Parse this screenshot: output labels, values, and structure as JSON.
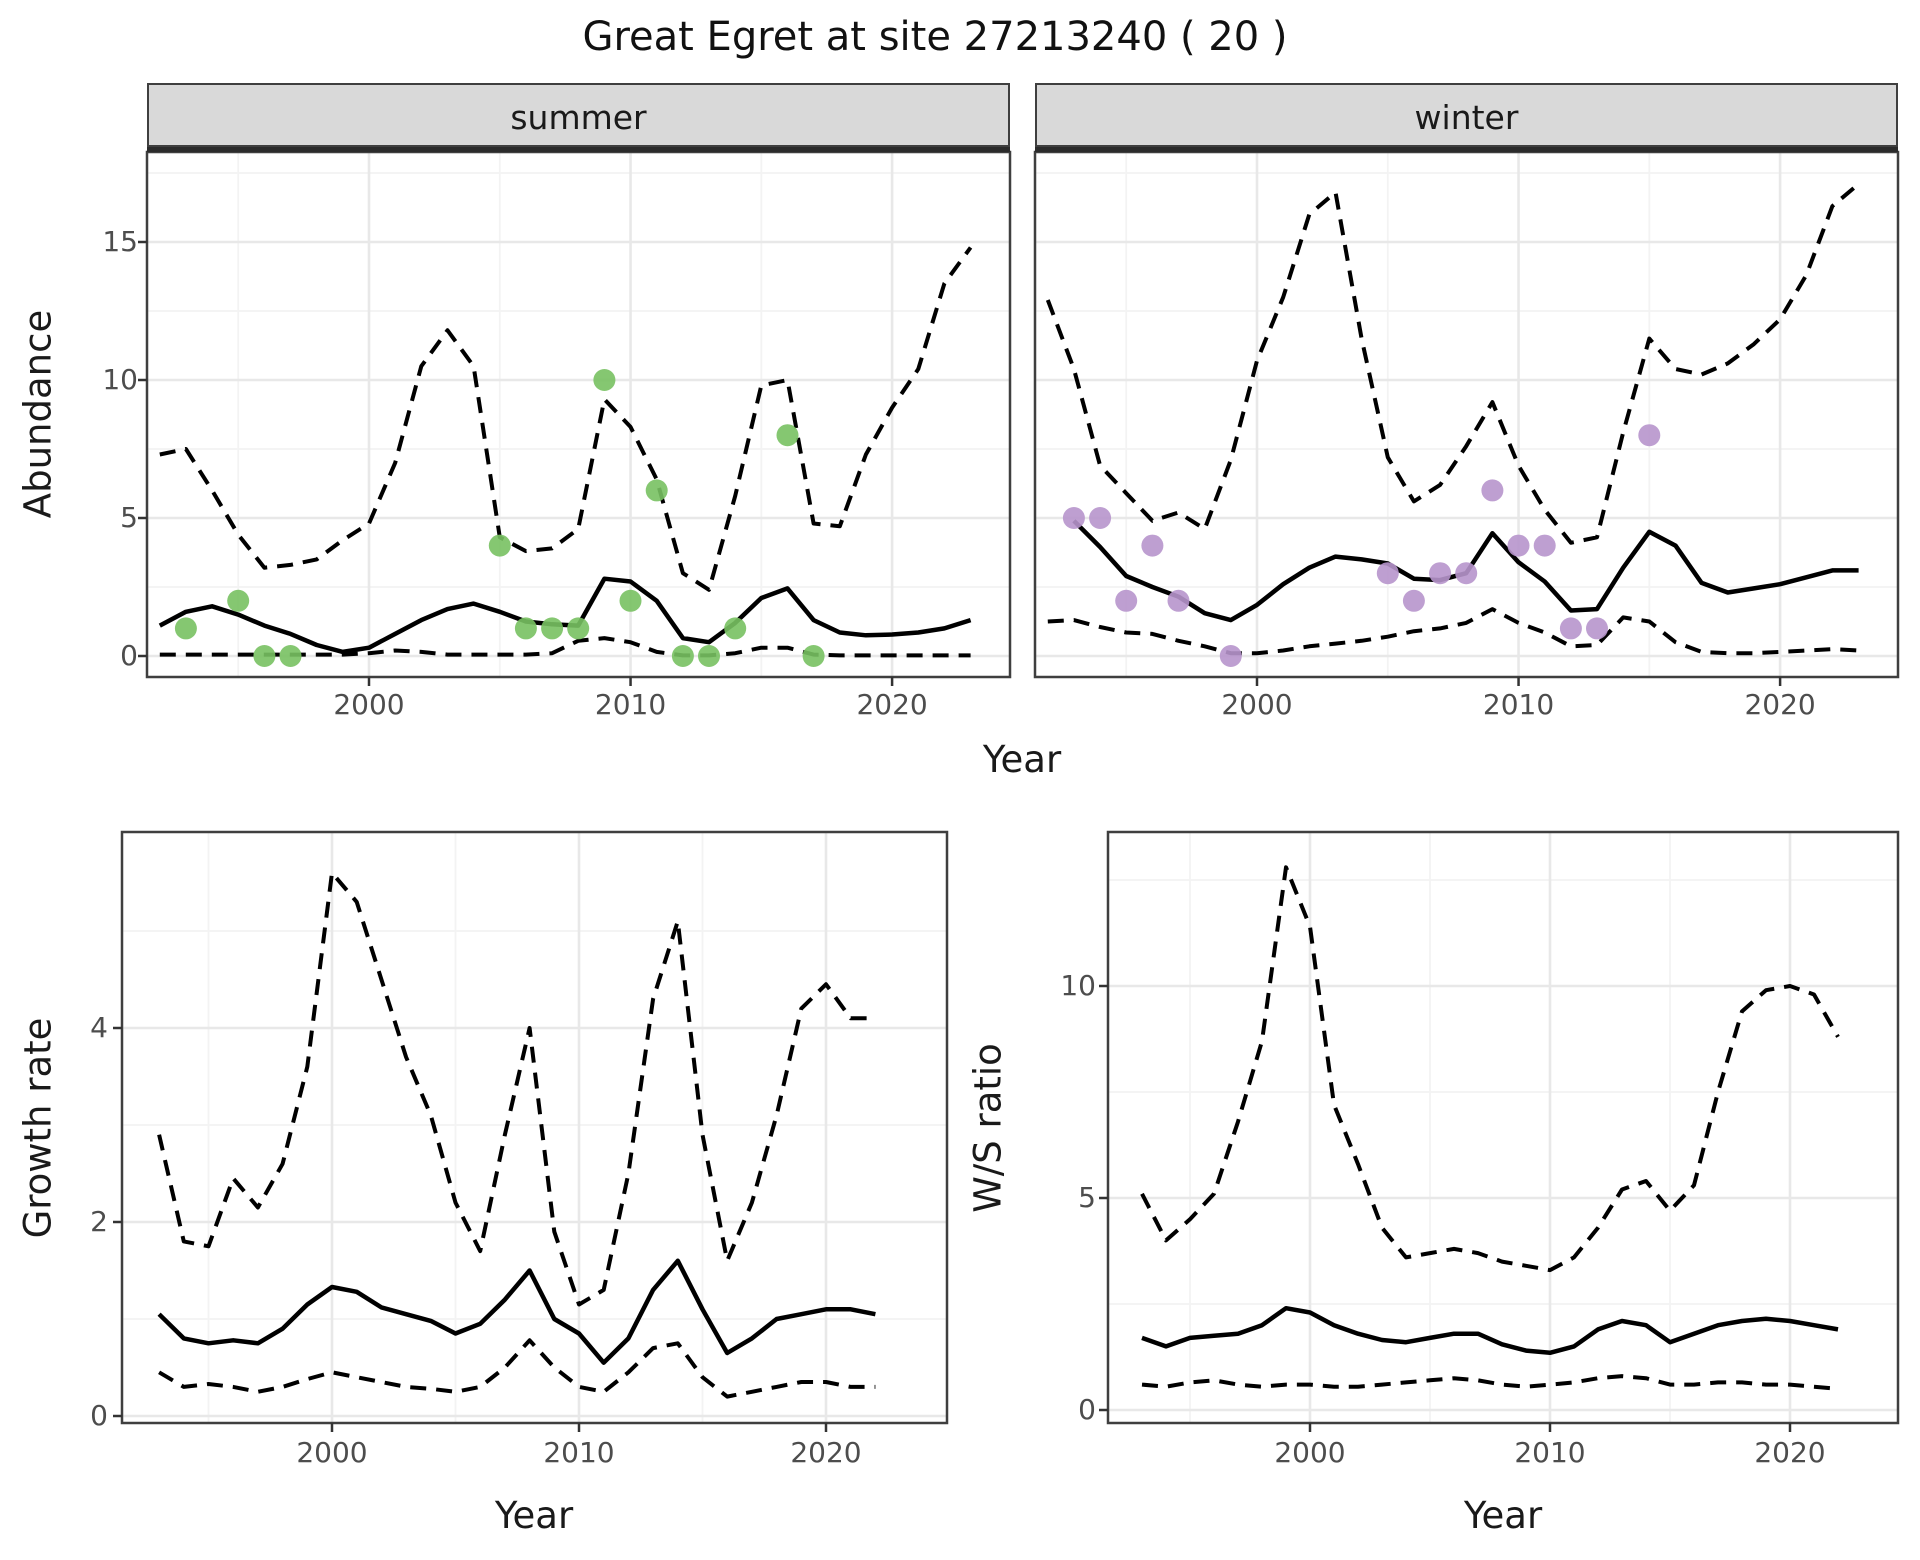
{
  "title": "Great Egret at site 27213240 ( 20 )",
  "colors": {
    "summer_point": "#78c162",
    "winter_point": "#b795cc",
    "line": "#000000",
    "strip_bg": "#d9d9d9",
    "grid_major": "#e8e8e8",
    "grid_minor": "#f3f3f3",
    "panel_border": "#3f3f3f",
    "tick_text": "#4d4d4d"
  },
  "top": {
    "ylabel": "Abundance",
    "xlabel": "Year",
    "facets": [
      "summer",
      "winter"
    ]
  },
  "bottom_left": {
    "ylabel": "Growth rate",
    "xlabel": "Year"
  },
  "bottom_right": {
    "ylabel": "W/S ratio",
    "xlabel": "Year"
  },
  "chart_data": [
    {
      "id": "abundance-summer",
      "type": "line+scatter",
      "facet": "summer",
      "ylabel": "Abundance",
      "xlabel": "Year",
      "xlim": [
        1991.5,
        2024.5
      ],
      "ylim": [
        -0.8,
        18.3
      ],
      "x_ticks": [
        2000,
        2010,
        2020
      ],
      "y_ticks": [
        15,
        10,
        5,
        0
      ],
      "legend": "none",
      "series": [
        {
          "name": "median",
          "style": "solid",
          "start_year": 1992,
          "values": [
            1.1,
            1.6,
            1.8,
            1.5,
            1.1,
            0.8,
            0.4,
            0.15,
            0.3,
            0.8,
            1.3,
            1.7,
            1.9,
            1.6,
            1.25,
            1.15,
            1.1,
            2.8,
            2.7,
            2.0,
            0.65,
            0.5,
            1.2,
            2.1,
            2.45,
            1.3,
            0.85,
            0.75,
            0.78,
            0.85,
            1.0,
            1.3
          ]
        },
        {
          "name": "upper_ci",
          "style": "dashed",
          "start_year": 1992,
          "values": [
            7.3,
            7.5,
            6.0,
            4.4,
            3.2,
            3.3,
            3.5,
            4.2,
            4.8,
            7.0,
            10.5,
            11.8,
            10.5,
            4.3,
            3.8,
            3.9,
            4.6,
            9.3,
            8.3,
            6.4,
            3.0,
            2.4,
            5.8,
            9.8,
            10.0,
            4.8,
            4.7,
            7.3,
            9.0,
            10.4,
            13.5,
            14.8
          ]
        },
        {
          "name": "lower_ci",
          "style": "dashed",
          "start_year": 1992,
          "values": [
            0.05,
            0.05,
            0.05,
            0.05,
            0.05,
            0.05,
            0.05,
            0.05,
            0.1,
            0.2,
            0.15,
            0.05,
            0.05,
            0.05,
            0.05,
            0.1,
            0.55,
            0.65,
            0.5,
            0.15,
            0.02,
            0.02,
            0.1,
            0.3,
            0.3,
            0.05,
            0.02,
            0.02,
            0.02,
            0.02,
            0.02,
            0.02
          ]
        }
      ],
      "points": {
        "color": "summer_point",
        "x": [
          1993,
          1995,
          1996,
          1997,
          2005,
          2006,
          2007,
          2008,
          2009,
          2010,
          2011,
          2012,
          2013,
          2014,
          2016,
          2017
        ],
        "y": [
          1,
          2,
          0,
          0,
          4,
          1,
          1,
          1,
          10,
          2,
          6,
          0,
          0,
          1,
          8,
          0
        ]
      }
    },
    {
      "id": "abundance-winter",
      "type": "line+scatter",
      "facet": "winter",
      "ylabel": "Abundance",
      "xlabel": "Year",
      "xlim": [
        1991.5,
        2024.5
      ],
      "ylim": [
        -0.8,
        18.3
      ],
      "x_ticks": [
        2000,
        2010,
        2020
      ],
      "y_ticks": [
        15,
        10,
        5,
        0
      ],
      "legend": "none",
      "series": [
        {
          "name": "median",
          "style": "solid",
          "start_year": 1993,
          "values": [
            4.9,
            3.95,
            2.9,
            2.5,
            2.15,
            1.55,
            1.3,
            1.85,
            2.6,
            3.2,
            3.6,
            3.5,
            3.35,
            2.8,
            2.75,
            3.0,
            4.45,
            3.4,
            2.7,
            1.65,
            1.7,
            3.2,
            4.5,
            4.0,
            2.65,
            2.3,
            2.45,
            2.6,
            2.85,
            3.1,
            3.1
          ]
        },
        {
          "name": "upper_ci",
          "style": "dashed",
          "start_year": 1992,
          "values": [
            12.9,
            10.4,
            6.9,
            5.9,
            4.9,
            5.2,
            4.6,
            7.1,
            10.7,
            13.0,
            16.0,
            16.8,
            11.5,
            7.2,
            5.6,
            6.2,
            7.6,
            9.2,
            6.9,
            5.3,
            4.1,
            4.3,
            8.1,
            11.5,
            10.4,
            10.2,
            10.6,
            11.3,
            12.2,
            13.8,
            16.3,
            17.1
          ]
        },
        {
          "name": "lower_ci",
          "style": "dashed",
          "start_year": 1992,
          "values": [
            1.25,
            1.3,
            1.05,
            0.85,
            0.8,
            0.55,
            0.35,
            0.1,
            0.1,
            0.2,
            0.35,
            0.45,
            0.55,
            0.7,
            0.9,
            1.0,
            1.2,
            1.7,
            1.2,
            0.85,
            0.35,
            0.4,
            1.4,
            1.25,
            0.5,
            0.15,
            0.1,
            0.1,
            0.15,
            0.2,
            0.25,
            0.2
          ]
        }
      ],
      "points": {
        "color": "winter_point",
        "x": [
          1993,
          1994,
          1995,
          1996,
          1997,
          1999,
          2005,
          2006,
          2007,
          2008,
          2009,
          2010,
          2011,
          2012,
          2013,
          2015
        ],
        "y": [
          5,
          5,
          2,
          4,
          2,
          0,
          3,
          2,
          3,
          3,
          6,
          4,
          4,
          1,
          1,
          8
        ]
      }
    },
    {
      "id": "growth-rate",
      "type": "line",
      "ylabel": "Growth rate",
      "xlabel": "Year",
      "xlim": [
        1991.5,
        2024.9
      ],
      "ylim": [
        -0.07,
        6.0
      ],
      "x_ticks": [
        2000,
        2010,
        2020
      ],
      "y_ticks": [
        4,
        2,
        0
      ],
      "legend": "none",
      "series": [
        {
          "name": "median",
          "style": "solid",
          "start_year": 1993,
          "values": [
            1.05,
            0.8,
            0.75,
            0.78,
            0.75,
            0.9,
            1.15,
            1.33,
            1.28,
            1.12,
            1.05,
            0.98,
            0.85,
            0.95,
            1.2,
            1.5,
            1.0,
            0.85,
            0.55,
            0.8,
            1.3,
            1.6,
            1.1,
            0.65,
            0.8,
            1.0,
            1.05,
            1.1,
            1.1,
            1.05
          ]
        },
        {
          "name": "upper_ci",
          "style": "dashed",
          "start_year": 1993,
          "values": [
            2.9,
            1.8,
            1.75,
            2.45,
            2.15,
            2.6,
            3.6,
            5.6,
            5.3,
            4.5,
            3.7,
            3.1,
            2.2,
            1.7,
            2.9,
            4.0,
            1.9,
            1.15,
            1.3,
            2.5,
            4.3,
            5.1,
            2.9,
            1.6,
            2.2,
            3.1,
            4.2,
            4.45,
            4.1,
            4.1
          ]
        },
        {
          "name": "lower_ci",
          "style": "dashed",
          "start_year": 1993,
          "values": [
            0.45,
            0.3,
            0.33,
            0.3,
            0.25,
            0.3,
            0.38,
            0.45,
            0.4,
            0.35,
            0.3,
            0.28,
            0.25,
            0.3,
            0.5,
            0.78,
            0.5,
            0.3,
            0.25,
            0.45,
            0.7,
            0.75,
            0.4,
            0.2,
            0.25,
            0.3,
            0.35,
            0.35,
            0.3,
            0.3
          ]
        }
      ]
    },
    {
      "id": "ws-ratio",
      "type": "line",
      "ylabel": "W/S ratio",
      "xlabel": "Year",
      "xlim": [
        1991.5,
        2024.5
      ],
      "ylim": [
        -0.3,
        13.6
      ],
      "x_ticks": [
        2000,
        2010,
        2020
      ],
      "y_ticks": [
        10,
        5,
        0
      ],
      "legend": "none",
      "series": [
        {
          "name": "median",
          "style": "solid",
          "start_year": 1993,
          "values": [
            1.7,
            1.5,
            1.7,
            1.75,
            1.8,
            2.0,
            2.4,
            2.3,
            2.0,
            1.8,
            1.65,
            1.6,
            1.7,
            1.8,
            1.8,
            1.55,
            1.4,
            1.35,
            1.5,
            1.9,
            2.1,
            2.0,
            1.6,
            1.8,
            2.0,
            2.1,
            2.15,
            2.1,
            2.0,
            1.9
          ]
        },
        {
          "name": "upper_ci",
          "style": "dashed",
          "start_year": 1993,
          "values": [
            5.1,
            4.0,
            4.5,
            5.1,
            6.8,
            8.7,
            12.8,
            11.4,
            7.2,
            5.8,
            4.3,
            3.6,
            3.7,
            3.8,
            3.7,
            3.5,
            3.4,
            3.3,
            3.6,
            4.3,
            5.2,
            5.4,
            4.7,
            5.3,
            7.5,
            9.4,
            9.9,
            10.0,
            9.8,
            8.8
          ]
        },
        {
          "name": "lower_ci",
          "style": "dashed",
          "start_year": 1993,
          "values": [
            0.6,
            0.55,
            0.65,
            0.7,
            0.6,
            0.55,
            0.6,
            0.6,
            0.55,
            0.55,
            0.6,
            0.65,
            0.7,
            0.75,
            0.7,
            0.6,
            0.55,
            0.6,
            0.65,
            0.75,
            0.8,
            0.75,
            0.6,
            0.6,
            0.65,
            0.65,
            0.6,
            0.6,
            0.55,
            0.5
          ]
        }
      ]
    }
  ]
}
